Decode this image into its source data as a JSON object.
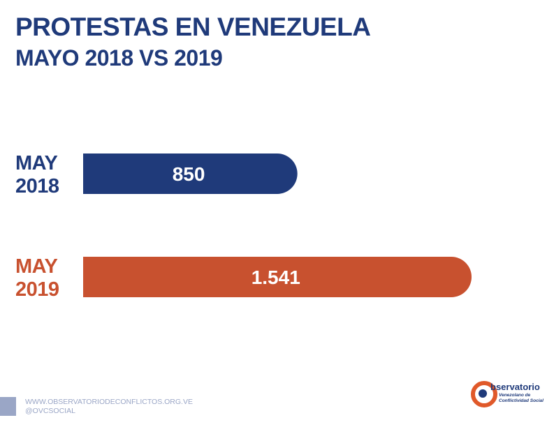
{
  "title": "PROTESTAS EN VENEZUELA",
  "subtitle": "MAYO 2018 VS 2019",
  "chart_data": {
    "type": "bar",
    "orientation": "horizontal",
    "categories": [
      [
        "MAY",
        "2018"
      ],
      [
        "MAY",
        "2019"
      ]
    ],
    "values": [
      850,
      1541
    ],
    "value_labels": [
      "850",
      "1.541"
    ],
    "colors": [
      "#1f3a7a",
      "#c8512f"
    ],
    "xlim": [
      0,
      1541
    ]
  },
  "footer": {
    "website": "WWW.OBSERVATORIODECONFLICTOS.ORG.VE",
    "handle": "@OVCSOCIAL"
  },
  "logo": {
    "word": "bservatorio",
    "line1": "Venezolano de",
    "line2": "Conflictividad Social"
  }
}
